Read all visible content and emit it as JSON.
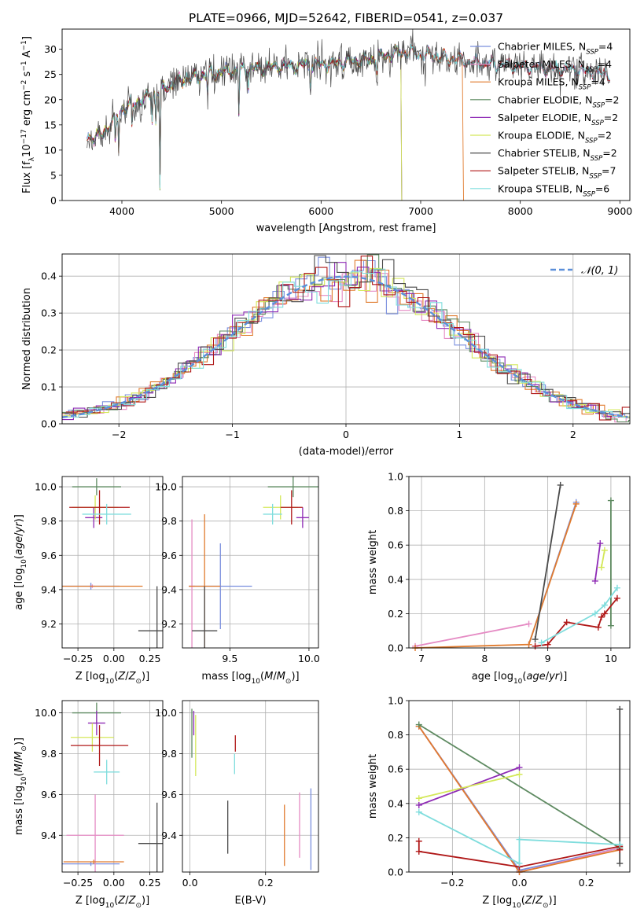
{
  "figure": {
    "title": "PLATE=0966, MJD=52642, FIBERID=0541, z=0.037"
  },
  "models": [
    {
      "name": "Chabrier MILES",
      "nssp": "4",
      "color": "#7b8fde"
    },
    {
      "name": "Salpeter MILES",
      "nssp": "4",
      "color": "#e58bc4"
    },
    {
      "name": "Kroupa MILES",
      "nssp": "4",
      "color": "#e07b2e"
    },
    {
      "name": "Chabrier ELODIE",
      "nssp": "2",
      "color": "#5e8a61"
    },
    {
      "name": "Salpeter ELODIE",
      "nssp": "2",
      "color": "#8e2ab5"
    },
    {
      "name": "Kroupa ELODIE",
      "nssp": "2",
      "color": "#d4e85a"
    },
    {
      "name": "Chabrier STELIB",
      "nssp": "2",
      "color": "#4a4a4a"
    },
    {
      "name": "Salpeter STELIB",
      "nssp": "7",
      "color": "#b01818"
    },
    {
      "name": "Kroupa STELIB",
      "nssp": "6",
      "color": "#7fdddd"
    }
  ],
  "chart_data": [
    {
      "id": "spectrum",
      "type": "line",
      "xlabel": "wavelength [Angstrom, rest frame]",
      "ylabel": "Flux [f_λ 10^-17 erg cm^-2 s^-1 A^-1]",
      "xlim": [
        3400,
        9100
      ],
      "ylim": [
        0,
        34
      ],
      "xticks": [
        4000,
        5000,
        6000,
        7000,
        8000,
        9000
      ],
      "yticks": [
        0,
        5,
        10,
        15,
        20,
        25,
        30
      ],
      "grid": false,
      "legend": "upper-right",
      "data_range": [
        3650,
        8900
      ],
      "continuum": {
        "x": [
          3650,
          3800,
          4000,
          4300,
          4600,
          5000,
          5500,
          6000,
          6500,
          6800,
          7200,
          7500,
          8000,
          8500,
          8900
        ],
        "y": [
          12.5,
          13,
          18,
          21,
          24,
          25.5,
          26.5,
          27,
          28,
          29.5,
          28.5,
          27.5,
          26.5,
          26,
          25
        ]
      },
      "absorption_lines": [
        {
          "x": 3934,
          "depth": 6
        },
        {
          "x": 3968,
          "depth": 7
        },
        {
          "x": 4102,
          "depth": 5
        },
        {
          "x": 4304,
          "depth": 5
        },
        {
          "x": 4340,
          "depth": 6
        },
        {
          "x": 4383,
          "depth": 20
        },
        {
          "x": 4861,
          "depth": 4
        },
        {
          "x": 5175,
          "depth": 9
        },
        {
          "x": 5270,
          "depth": 3
        },
        {
          "x": 5893,
          "depth": 4
        },
        {
          "x": 6563,
          "depth": 3
        }
      ]
    },
    {
      "id": "residuals",
      "type": "histogram",
      "xlabel": "(data-model)/error",
      "ylabel": "Normed distribution",
      "xlim": [
        -2.5,
        2.5
      ],
      "ylim": [
        0,
        0.46
      ],
      "xticks": [
        -2,
        -1,
        0,
        1,
        2
      ],
      "yticks": [
        0.0,
        0.1,
        0.2,
        0.3,
        0.4
      ],
      "grid": true,
      "legend": "upper-right",
      "reference_curve": {
        "name": "𝒩(0, 1)",
        "mean": 0,
        "sigma": 1,
        "color": "#5b8fd9"
      },
      "bin_width": 0.1
    },
    {
      "id": "z-vs-age",
      "type": "errorbar",
      "xlabel": "Z [log10(Z/Z⊙)]",
      "ylabel": "age [log10(age/yr)]",
      "xlim": [
        -0.36,
        0.34
      ],
      "ylim": [
        9.06,
        10.06
      ],
      "xticks": [
        -0.25,
        0.0,
        0.25
      ],
      "xtick_labels": [
        "−0.25",
        "0.00",
        "0.25"
      ],
      "yticks": [
        9.2,
        9.4,
        9.6,
        9.8,
        10.0
      ],
      "points": [
        {
          "model": 0,
          "x": -0.16,
          "xerr": 0.2,
          "y": 9.42,
          "yerr": 0.02
        },
        {
          "model": 1,
          "x": -0.15,
          "xerr": 0.02,
          "y": 9.42,
          "yerr": 0.01
        },
        {
          "model": 2,
          "x": -0.15,
          "xerr": 0.35,
          "y": 9.42,
          "yerr": 0.0
        },
        {
          "model": 3,
          "x": -0.12,
          "xerr": 0.17,
          "y": 10.0,
          "yerr": 0.05
        },
        {
          "model": 4,
          "x": -0.14,
          "xerr": 0.06,
          "y": 9.82,
          "yerr": 0.06
        },
        {
          "model": 5,
          "x": -0.13,
          "xerr": 0.16,
          "y": 9.88,
          "yerr": 0.07
        },
        {
          "model": 6,
          "x": 0.3,
          "xerr": 0.13,
          "y": 9.16,
          "yerr": 0.26
        },
        {
          "model": 7,
          "x": -0.1,
          "xerr": 0.21,
          "y": 9.88,
          "yerr": 0.1
        },
        {
          "model": 8,
          "x": -0.05,
          "xerr": 0.17,
          "y": 9.84,
          "yerr": 0.06
        }
      ]
    },
    {
      "id": "mass-vs-age",
      "type": "errorbar",
      "xlabel": "mass [log10(M/M⊙)]",
      "ylabel": "",
      "xlim": [
        9.2,
        10.06
      ],
      "ylim": [
        9.06,
        10.06
      ],
      "xticks": [
        9.5,
        10.0
      ],
      "yticks": [
        9.2,
        9.4,
        9.6,
        9.8,
        10.0
      ],
      "points": [
        {
          "model": 0,
          "x": 9.44,
          "xerr": 0.2,
          "y": 9.42,
          "yerr": 0.25
        },
        {
          "model": 1,
          "x": 9.26,
          "xerr": 0.02,
          "y": 9.42,
          "yerr": 0.39
        },
        {
          "model": 2,
          "x": 9.34,
          "xerr": 0.1,
          "y": 9.42,
          "yerr": 0.42
        },
        {
          "model": 3,
          "x": 9.9,
          "xerr": 0.16,
          "y": 10.0,
          "yerr": 0.06
        },
        {
          "model": 4,
          "x": 9.96,
          "xerr": 0.04,
          "y": 9.82,
          "yerr": 0.06
        },
        {
          "model": 5,
          "x": 9.82,
          "xerr": 0.11,
          "y": 9.88,
          "yerr": 0.07
        },
        {
          "model": 6,
          "x": 9.34,
          "xerr": 0.08,
          "y": 9.16,
          "yerr": 0.26
        },
        {
          "model": 7,
          "x": 9.89,
          "xerr": 0.07,
          "y": 9.88,
          "yerr": 0.1
        },
        {
          "model": 8,
          "x": 9.77,
          "xerr": 0.06,
          "y": 9.84,
          "yerr": 0.06
        }
      ]
    },
    {
      "id": "age-vs-mass-weight",
      "type": "line",
      "xlabel": "age [log10(age/yr)]",
      "ylabel": "mass weight",
      "xlim": [
        6.8,
        10.3
      ],
      "ylim": [
        0,
        1.0
      ],
      "xticks": [
        7,
        8,
        9,
        10
      ],
      "yticks": [
        0.0,
        0.2,
        0.4,
        0.6,
        0.8,
        1.0
      ],
      "grid": true,
      "series": [
        {
          "model": 0,
          "x": [
            8.7,
            9.45
          ],
          "y": [
            0.02,
            0.85
          ]
        },
        {
          "model": 1,
          "x": [
            6.9,
            8.7
          ],
          "y": [
            0.01,
            0.14
          ]
        },
        {
          "model": 2,
          "x": [
            6.9,
            8.7,
            9.45
          ],
          "y": [
            0.0,
            0.02,
            0.84
          ]
        },
        {
          "model": 3,
          "x": [
            10.0,
            10.0
          ],
          "y": [
            0.13,
            0.86
          ]
        },
        {
          "model": 4,
          "x": [
            9.75,
            9.83
          ],
          "y": [
            0.39,
            0.61
          ]
        },
        {
          "model": 5,
          "x": [
            9.85,
            9.9
          ],
          "y": [
            0.47,
            0.57
          ]
        },
        {
          "model": 6,
          "x": [
            8.8,
            9.2
          ],
          "y": [
            0.05,
            0.95
          ]
        },
        {
          "model": 7,
          "x": [
            8.8,
            9.0,
            9.3,
            9.8,
            9.85,
            9.9,
            10.1
          ],
          "y": [
            0.01,
            0.02,
            0.15,
            0.12,
            0.18,
            0.2,
            0.29
          ]
        },
        {
          "model": 8,
          "x": [
            8.9,
            9.75,
            9.9,
            10.1
          ],
          "y": [
            0.03,
            0.2,
            0.25,
            0.35
          ]
        }
      ]
    },
    {
      "id": "z-vs-mass",
      "type": "errorbar",
      "xlabel": "Z [log10(Z/Z⊙)]",
      "ylabel": "mass [log10(M/M⊙)]",
      "xlim": [
        -0.36,
        0.34
      ],
      "ylim": [
        9.22,
        10.06
      ],
      "xticks": [
        -0.25,
        0.0,
        0.25
      ],
      "xtick_labels": [
        "−0.25",
        "0.00",
        "0.25"
      ],
      "yticks": [
        9.4,
        9.6,
        9.8,
        10.0
      ],
      "points": [
        {
          "model": 0,
          "x": -0.16,
          "xerr": 0.2,
          "y": 9.26,
          "yerr": 0.01
        },
        {
          "model": 1,
          "x": -0.13,
          "xerr": 0.2,
          "y": 9.4,
          "yerr": 0.2
        },
        {
          "model": 2,
          "x": -0.14,
          "xerr": 0.21,
          "y": 9.27,
          "yerr": 0.01
        },
        {
          "model": 3,
          "x": -0.12,
          "xerr": 0.17,
          "y": 10.0,
          "yerr": 0.05
        },
        {
          "model": 4,
          "x": -0.12,
          "xerr": 0.06,
          "y": 9.95,
          "yerr": 0.06
        },
        {
          "model": 5,
          "x": -0.15,
          "xerr": 0.15,
          "y": 9.88,
          "yerr": 0.07
        },
        {
          "model": 6,
          "x": 0.3,
          "xerr": 0.13,
          "y": 9.36,
          "yerr": 0.2
        },
        {
          "model": 7,
          "x": -0.1,
          "xerr": 0.2,
          "y": 9.84,
          "yerr": 0.1
        },
        {
          "model": 8,
          "x": -0.05,
          "xerr": 0.09,
          "y": 9.71,
          "yerr": 0.06
        }
      ]
    },
    {
      "id": "ebv-vs-mass",
      "type": "errorbar",
      "xlabel": "E(B-V)",
      "ylabel": "",
      "xlim": [
        -0.02,
        0.34
      ],
      "ylim": [
        9.22,
        10.06
      ],
      "xticks": [
        0.0,
        0.2
      ],
      "yticks": [
        9.4,
        9.6,
        9.8,
        10.0
      ],
      "points": [
        {
          "model": 0,
          "x": 0.32,
          "xerr": 0,
          "y": 9.43,
          "yerr": 0.2
        },
        {
          "model": 1,
          "x": 0.29,
          "xerr": 0,
          "y": 9.45,
          "yerr": 0.16
        },
        {
          "model": 2,
          "x": 0.25,
          "xerr": 0,
          "y": 9.4,
          "yerr": 0.15
        },
        {
          "model": 3,
          "x": 0.005,
          "xerr": 0,
          "y": 9.9,
          "yerr": 0.12
        },
        {
          "model": 4,
          "x": 0.01,
          "xerr": 0,
          "y": 9.95,
          "yerr": 0.06
        },
        {
          "model": 5,
          "x": 0.015,
          "xerr": 0,
          "y": 9.84,
          "yerr": 0.15
        },
        {
          "model": 6,
          "x": 0.1,
          "xerr": 0,
          "y": 9.44,
          "yerr": 0.13
        },
        {
          "model": 7,
          "x": 0.12,
          "xerr": 0,
          "y": 9.85,
          "yerr": 0.04
        },
        {
          "model": 8,
          "x": 0.118,
          "xerr": 0,
          "y": 9.75,
          "yerr": 0.05
        }
      ]
    },
    {
      "id": "z-vs-mass-weight",
      "type": "line",
      "xlabel": "Z [log10(Z/Z⊙)]",
      "ylabel": "mass weight",
      "xlim": [
        -0.33,
        0.33
      ],
      "ylim": [
        0,
        1.0
      ],
      "xticks": [
        -0.2,
        0.0,
        0.2
      ],
      "xtick_labels": [
        "−0.2",
        "0.0",
        "0.2"
      ],
      "yticks": [
        0.0,
        0.2,
        0.4,
        0.6,
        0.8,
        1.0
      ],
      "grid": true,
      "series": [
        {
          "model": 0,
          "x": [
            -0.3,
            0.0,
            0.3
          ],
          "y": [
            0.85,
            0.01,
            0.14
          ]
        },
        {
          "model": 1,
          "x": [
            -0.3,
            0.0,
            0.3
          ],
          "y": [
            0.85,
            0.0,
            0.14
          ]
        },
        {
          "model": 2,
          "x": [
            -0.3,
            0.0,
            0.3
          ],
          "y": [
            0.85,
            0.0,
            0.13
          ]
        },
        {
          "model": 3,
          "x": [
            -0.3,
            0.3
          ],
          "y": [
            0.86,
            0.14
          ]
        },
        {
          "model": 4,
          "x": [
            -0.3,
            0.0
          ],
          "y": [
            0.39,
            0.61
          ]
        },
        {
          "model": 5,
          "x": [
            -0.3,
            0.0
          ],
          "y": [
            0.43,
            0.57
          ]
        },
        {
          "model": 6,
          "x": [
            0.3,
            0.3
          ],
          "y": [
            0.05,
            0.95
          ]
        },
        {
          "model": 7,
          "x": [
            -0.3,
            -0.3,
            0.0,
            0.3,
            0.3
          ],
          "y": [
            0.18,
            0.12,
            0.03,
            0.15,
            0.13
          ]
        },
        {
          "model": 8,
          "x": [
            -0.3,
            0.0,
            0.0,
            0.3
          ],
          "y": [
            0.35,
            0.05,
            0.19,
            0.16
          ]
        }
      ]
    }
  ]
}
